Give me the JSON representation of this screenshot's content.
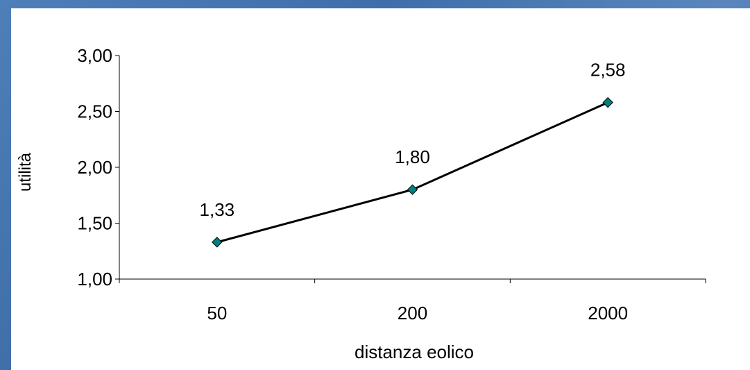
{
  "chart_data": {
    "type": "line",
    "categories": [
      "50",
      "200",
      "2000"
    ],
    "series": [
      {
        "values": [
          1.33,
          1.8,
          2.58
        ],
        "labels": [
          "1,33",
          "1,80",
          "2,58"
        ],
        "color": "#008080",
        "marker": "diamond"
      }
    ],
    "xlabel": "distanza eolico",
    "ylabel": "utilità",
    "ylim": [
      1.0,
      3.0
    ],
    "yticks": [
      1.0,
      1.5,
      2.0,
      2.5,
      3.0
    ],
    "ytick_labels": [
      "1,00",
      "1,50",
      "2,00",
      "2,50",
      "3,00"
    ],
    "grid": false,
    "legend": "none"
  }
}
